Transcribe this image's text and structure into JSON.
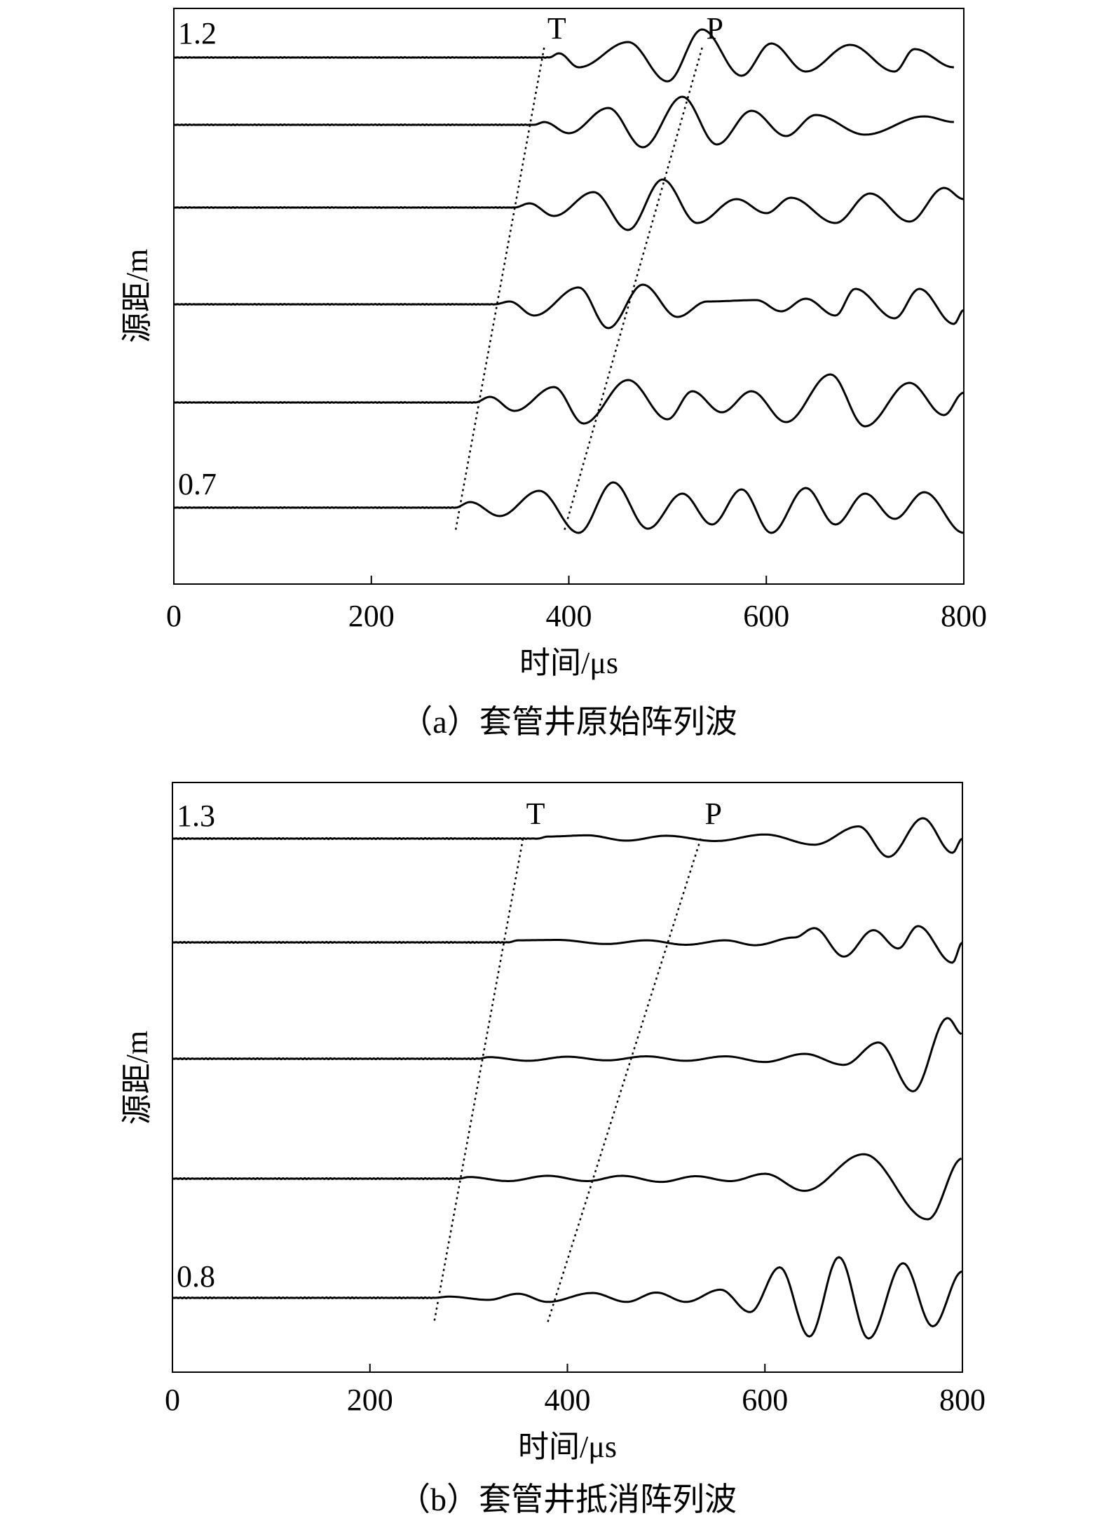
{
  "chart_data": [
    {
      "type": "line",
      "panel": "a",
      "caption": "（a）套管井原始阵列波",
      "xlabel": "时间/μs",
      "ylabel": "源距/m",
      "xlim": [
        0,
        800
      ],
      "xticks": [
        "0",
        "200",
        "400",
        "600",
        "800"
      ],
      "trace_labels": {
        "top": "1.2",
        "bottom": "0.7"
      },
      "grid": false,
      "series": [
        {
          "onset": 380,
          "peaks": [
            [
              390,
              0.15
            ],
            [
              410,
              -0.35
            ],
            [
              460,
              0.55
            ],
            [
              500,
              -0.85
            ],
            [
              535,
              1.0
            ],
            [
              575,
              -0.65
            ],
            [
              605,
              0.5
            ],
            [
              640,
              -0.5
            ],
            [
              685,
              0.45
            ],
            [
              730,
              -0.5
            ],
            [
              750,
              0.3
            ],
            [
              790,
              -0.35
            ]
          ]
        },
        {
          "onset": 365,
          "peaks": [
            [
              375,
              0.1
            ],
            [
              400,
              -0.3
            ],
            [
              440,
              0.6
            ],
            [
              475,
              -0.8
            ],
            [
              515,
              1.0
            ],
            [
              550,
              -0.7
            ],
            [
              585,
              0.5
            ],
            [
              620,
              -0.4
            ],
            [
              650,
              0.35
            ],
            [
              700,
              -0.35
            ],
            [
              760,
              0.3
            ],
            [
              790,
              0.1
            ]
          ]
        },
        {
          "onset": 345,
          "peaks": [
            [
              360,
              0.15
            ],
            [
              385,
              -0.3
            ],
            [
              425,
              0.55
            ],
            [
              460,
              -0.8
            ],
            [
              495,
              1.0
            ],
            [
              530,
              -0.55
            ],
            [
              570,
              0.3
            ],
            [
              600,
              -0.2
            ],
            [
              625,
              0.35
            ],
            [
              670,
              -0.55
            ],
            [
              705,
              0.5
            ],
            [
              745,
              -0.5
            ],
            [
              780,
              0.7
            ],
            [
              800,
              0.3
            ]
          ]
        },
        {
          "onset": 325,
          "peaks": [
            [
              340,
              0.1
            ],
            [
              365,
              -0.4
            ],
            [
              410,
              0.6
            ],
            [
              440,
              -0.85
            ],
            [
              475,
              0.7
            ],
            [
              510,
              -0.45
            ],
            [
              540,
              0.1
            ],
            [
              590,
              0.15
            ],
            [
              615,
              -0.25
            ],
            [
              640,
              0.2
            ],
            [
              670,
              -0.4
            ],
            [
              690,
              0.55
            ],
            [
              730,
              -0.5
            ],
            [
              755,
              0.55
            ],
            [
              790,
              -0.7
            ],
            [
              800,
              -0.2
            ]
          ]
        },
        {
          "onset": 305,
          "peaks": [
            [
              320,
              0.2
            ],
            [
              345,
              -0.3
            ],
            [
              385,
              0.55
            ],
            [
              415,
              -0.75
            ],
            [
              460,
              0.8
            ],
            [
              500,
              -0.6
            ],
            [
              525,
              0.4
            ],
            [
              555,
              -0.35
            ],
            [
              585,
              0.4
            ],
            [
              620,
              -0.7
            ],
            [
              665,
              1.0
            ],
            [
              700,
              -0.85
            ],
            [
              745,
              0.7
            ],
            [
              780,
              -0.45
            ],
            [
              800,
              0.35
            ]
          ]
        },
        {
          "onset": 285,
          "peaks": [
            [
              300,
              0.2
            ],
            [
              330,
              -0.3
            ],
            [
              370,
              0.6
            ],
            [
              410,
              -0.9
            ],
            [
              445,
              0.9
            ],
            [
              480,
              -0.75
            ],
            [
              515,
              0.5
            ],
            [
              545,
              -0.6
            ],
            [
              575,
              0.65
            ],
            [
              605,
              -0.9
            ],
            [
              640,
              0.7
            ],
            [
              670,
              -0.6
            ],
            [
              700,
              0.5
            ],
            [
              730,
              -0.4
            ],
            [
              760,
              0.55
            ],
            [
              800,
              -0.9
            ]
          ]
        }
      ],
      "markers": [
        {
          "label": "T",
          "time_top": 375,
          "time_bottom": 285
        },
        {
          "label": "P",
          "time_top": 535,
          "time_bottom": 395
        }
      ]
    },
    {
      "type": "line",
      "panel": "b",
      "caption": "（b）套管井抵消阵列波",
      "xlabel": "时间/μs",
      "ylabel": "源距/m",
      "xlim": [
        0,
        800
      ],
      "xticks": [
        "0",
        "200",
        "400",
        "600",
        "800"
      ],
      "trace_labels": {
        "top": "1.3",
        "bottom": "0.8"
      },
      "grid": false,
      "series": [
        {
          "onset": 370,
          "peaks": [
            [
              380,
              0.05
            ],
            [
              420,
              0.08
            ],
            [
              460,
              -0.05
            ],
            [
              500,
              0.07
            ],
            [
              550,
              -0.06
            ],
            [
              600,
              0.1
            ],
            [
              650,
              -0.15
            ],
            [
              695,
              0.3
            ],
            [
              725,
              -0.45
            ],
            [
              760,
              0.5
            ],
            [
              790,
              -0.35
            ],
            [
              800,
              0.0
            ]
          ]
        },
        {
          "onset": 340,
          "peaks": [
            [
              350,
              0.05
            ],
            [
              390,
              0.06
            ],
            [
              440,
              -0.04
            ],
            [
              480,
              0.05
            ],
            [
              520,
              -0.06
            ],
            [
              560,
              0.05
            ],
            [
              590,
              -0.07
            ],
            [
              630,
              0.12
            ],
            [
              650,
              0.35
            ],
            [
              680,
              -0.35
            ],
            [
              710,
              0.3
            ],
            [
              735,
              -0.15
            ],
            [
              755,
              0.4
            ],
            [
              790,
              -0.5
            ],
            [
              800,
              0.0
            ]
          ]
        },
        {
          "onset": 310,
          "peaks": [
            [
              320,
              0.04
            ],
            [
              360,
              -0.05
            ],
            [
              400,
              0.05
            ],
            [
              440,
              -0.04
            ],
            [
              480,
              0.06
            ],
            [
              520,
              -0.05
            ],
            [
              560,
              0.06
            ],
            [
              600,
              -0.08
            ],
            [
              640,
              0.12
            ],
            [
              680,
              -0.15
            ],
            [
              715,
              0.4
            ],
            [
              750,
              -0.8
            ],
            [
              785,
              1.0
            ],
            [
              800,
              0.6
            ]
          ]
        },
        {
          "onset": 290,
          "peaks": [
            [
              300,
              0.04
            ],
            [
              340,
              -0.06
            ],
            [
              380,
              0.07
            ],
            [
              420,
              -0.06
            ],
            [
              455,
              0.07
            ],
            [
              495,
              -0.08
            ],
            [
              530,
              0.06
            ],
            [
              565,
              -0.06
            ],
            [
              600,
              0.12
            ],
            [
              640,
              -0.3
            ],
            [
              700,
              0.6
            ],
            [
              765,
              -1.0
            ],
            [
              800,
              0.5
            ]
          ]
        },
        {
          "onset": 265,
          "peaks": [
            [
              280,
              0.03
            ],
            [
              320,
              -0.05
            ],
            [
              350,
              0.1
            ],
            [
              380,
              -0.1
            ],
            [
              425,
              0.12
            ],
            [
              460,
              -0.1
            ],
            [
              490,
              0.13
            ],
            [
              520,
              -0.1
            ],
            [
              555,
              0.2
            ],
            [
              585,
              -0.35
            ],
            [
              615,
              0.75
            ],
            [
              645,
              -0.95
            ],
            [
              675,
              1.0
            ],
            [
              705,
              -1.0
            ],
            [
              740,
              0.85
            ],
            [
              770,
              -0.7
            ],
            [
              800,
              0.65
            ]
          ]
        }
      ],
      "markers": [
        {
          "label": "T",
          "time_top": 355,
          "time_bottom": 265
        },
        {
          "label": "P",
          "time_top": 535,
          "time_bottom": 380
        }
      ]
    }
  ]
}
